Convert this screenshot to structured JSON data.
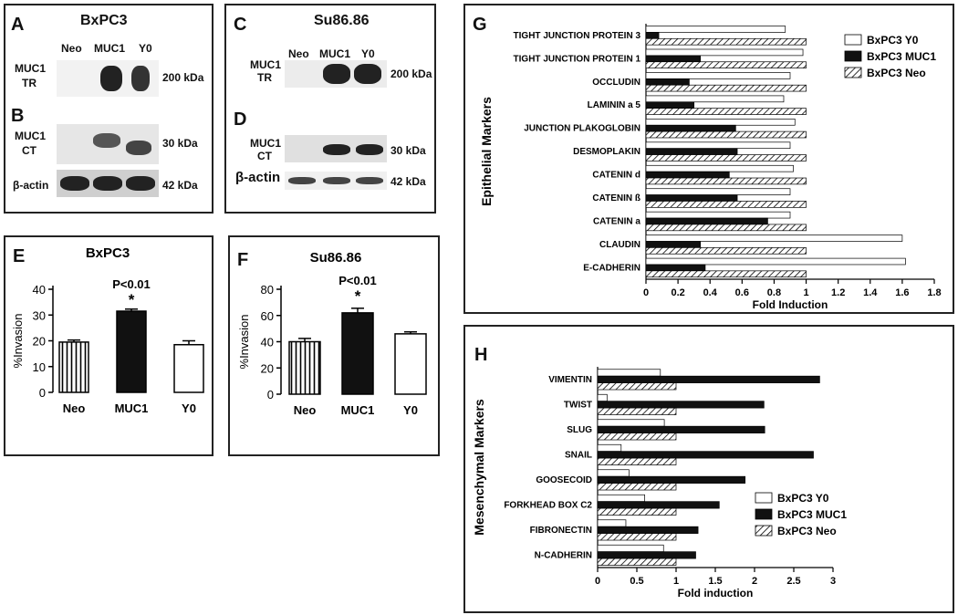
{
  "panelA": {
    "letter": "A",
    "title": "BxPC3",
    "lanes": [
      "Neo",
      "MUC1",
      "Y0"
    ],
    "label_line1": "MUC1",
    "label_line2": "TR",
    "size": "200 kDa"
  },
  "panelB": {
    "letter": "B",
    "label_line1": "MUC1",
    "label_line2": "CT",
    "size": "30 kDa",
    "actin_label": "β-actin",
    "actin_size": "42 kDa"
  },
  "panelC": {
    "letter": "C",
    "title": "Su86.86",
    "lanes": [
      "Neo",
      "MUC1",
      "Y0"
    ],
    "label_line1": "MUC1",
    "label_line2": "TR",
    "size": "200 kDa"
  },
  "panelD": {
    "letter": "D",
    "label_line1": "MUC1",
    "label_line2": "CT",
    "size": "30 kDa",
    "actin_label": "β-actin",
    "actin_size": "42 kDa"
  },
  "chart_data": [
    {
      "id": "E",
      "type": "bar",
      "title": "BxPC3",
      "ylabel": "%Invasion",
      "categories": [
        "Neo",
        "MUC1",
        "Y0"
      ],
      "values": [
        19.5,
        31.5,
        18.5
      ],
      "errors": [
        0.8,
        0.8,
        1.5
      ],
      "ylim": [
        0,
        40
      ],
      "yticks": [
        0,
        10,
        20,
        30,
        40
      ],
      "styles": [
        "vstripe",
        "black",
        "white"
      ],
      "annotation": "P<0.01",
      "star": "*"
    },
    {
      "id": "F",
      "type": "bar",
      "title": "Su86.86",
      "ylabel": "%Invasion",
      "categories": [
        "Neo",
        "MUC1",
        "Y0"
      ],
      "values": [
        40,
        62,
        46
      ],
      "errors": [
        2.5,
        3.5,
        1.5
      ],
      "ylim": [
        0,
        80
      ],
      "yticks": [
        0,
        20,
        40,
        60,
        80
      ],
      "styles": [
        "vstripe",
        "black",
        "white"
      ],
      "annotation": "P<0.01",
      "star": "*"
    },
    {
      "id": "G",
      "type": "bar",
      "orientation": "horizontal",
      "ylabel": "Epithelial Markers",
      "xlabel": "Fold Induction",
      "xlim": [
        0,
        1.8
      ],
      "xticks": [
        0,
        0.2,
        0.4,
        0.6,
        0.8,
        1,
        1.2,
        1.4,
        1.6,
        1.8
      ],
      "categories": [
        "TIGHT JUNCTION PROTEIN 3",
        "TIGHT JUNCTION PROTEIN 1",
        "OCCLUDIN",
        "LAMININ a 5",
        "JUNCTION PLAKOGLOBIN",
        "DESMOPLAKIN",
        "CATENIN d",
        "CATENIN ß",
        "CATENIN a",
        "CLAUDIN",
        "E-CADHERIN"
      ],
      "series": [
        {
          "name": "BxPC3 Y0",
          "style": "white",
          "values": [
            0.87,
            0.98,
            0.9,
            0.86,
            0.93,
            0.9,
            0.92,
            0.9,
            0.9,
            1.6,
            1.62
          ]
        },
        {
          "name": "BxPC3 MUC1",
          "style": "black",
          "values": [
            0.08,
            0.34,
            0.27,
            0.3,
            0.56,
            0.57,
            0.52,
            0.57,
            0.76,
            0.34,
            0.37
          ]
        },
        {
          "name": "BxPC3 Neo",
          "style": "hatch",
          "values": [
            1,
            1,
            1,
            1,
            1,
            1,
            1,
            1,
            1,
            1,
            1
          ]
        }
      ]
    },
    {
      "id": "H",
      "type": "bar",
      "orientation": "horizontal",
      "ylabel": "Mesenchymal Markers",
      "xlabel": "Fold induction",
      "xlim": [
        0,
        3
      ],
      "xticks": [
        0,
        0.5,
        1,
        1.5,
        2,
        2.5,
        3
      ],
      "categories": [
        "VIMENTIN",
        "TWIST",
        "SLUG",
        "SNAIL",
        "GOOSECOID",
        "FORKHEAD BOX C2",
        "FIBRONECTIN",
        "N-CADHERIN"
      ],
      "series": [
        {
          "name": "BxPC3 Y0",
          "style": "white",
          "values": [
            0.8,
            0.12,
            0.85,
            0.3,
            0.4,
            0.6,
            0.36,
            0.84
          ]
        },
        {
          "name": "BxPC3 MUC1",
          "style": "black",
          "values": [
            2.83,
            2.12,
            2.13,
            2.75,
            1.88,
            1.55,
            1.28,
            1.25
          ]
        },
        {
          "name": "BxPC3 Neo",
          "style": "hatch",
          "values": [
            1,
            1,
            1,
            1,
            1,
            1,
            1,
            1
          ]
        }
      ]
    }
  ]
}
